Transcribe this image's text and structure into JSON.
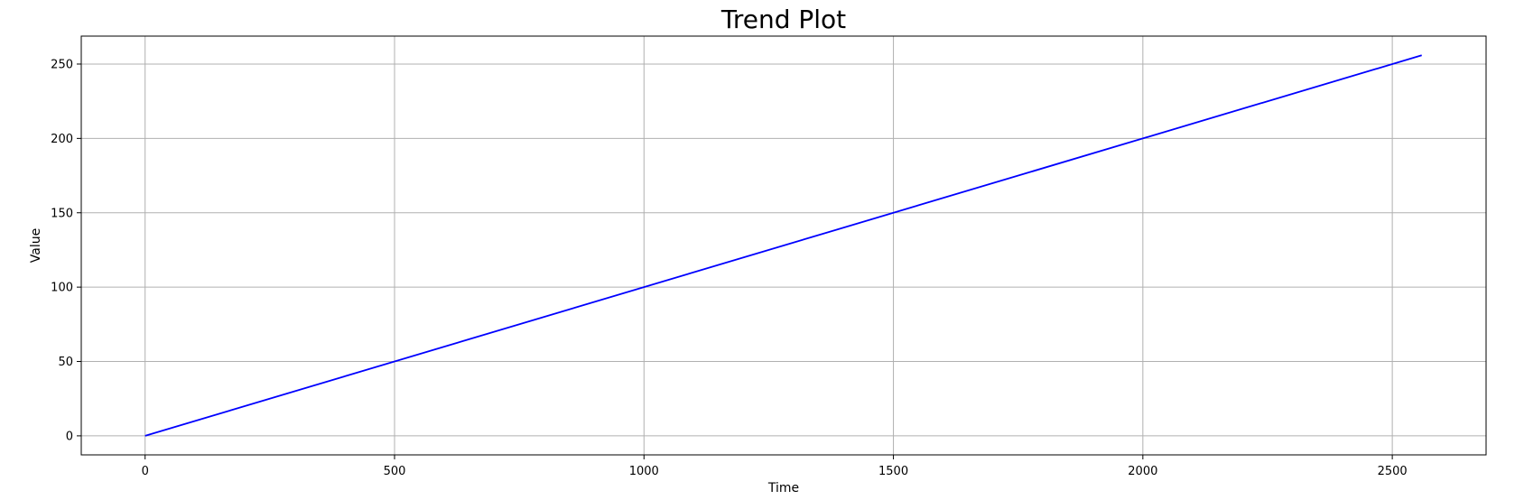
{
  "chart_data": {
    "type": "line",
    "title": "Trend Plot",
    "xlabel": "Time",
    "ylabel": "Value",
    "xlim": [
      -128,
      2688
    ],
    "ylim": [
      -12.8,
      268.8
    ],
    "xticks": [
      0,
      500,
      1000,
      1500,
      2000,
      2500
    ],
    "yticks": [
      0,
      50,
      100,
      150,
      200,
      250
    ],
    "grid": true,
    "legend": null,
    "series": [
      {
        "color": "#0000ff",
        "x": [
          0,
          2559
        ],
        "y": [
          0,
          255.9
        ]
      }
    ]
  }
}
